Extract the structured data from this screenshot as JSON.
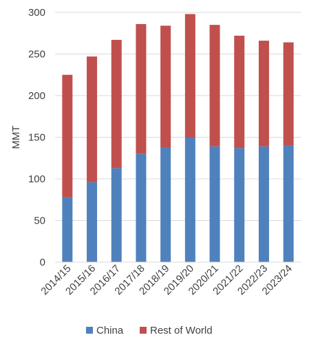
{
  "chart_data": {
    "type": "bar",
    "stacked": true,
    "categories": [
      "2014/15",
      "2015/16",
      "2016/17",
      "2017/18",
      "2018/19",
      "2019/20",
      "2020/21",
      "2021/22",
      "2022/23",
      "2023/24"
    ],
    "series": [
      {
        "name": "China",
        "color": "#4f81bd",
        "values": [
          78,
          96,
          113,
          130,
          138,
          150,
          139,
          137,
          139,
          140
        ]
      },
      {
        "name": "Rest of World",
        "color": "#c0504d",
        "values": [
          147,
          151,
          154,
          156,
          146,
          148,
          146,
          135,
          127,
          124
        ]
      }
    ],
    "title": "",
    "xlabel": "",
    "ylabel": "MMT",
    "ylim": [
      0,
      300
    ],
    "yticks": [
      0,
      50,
      100,
      150,
      200,
      250,
      300
    ],
    "grid": true,
    "legend": "bottom"
  }
}
